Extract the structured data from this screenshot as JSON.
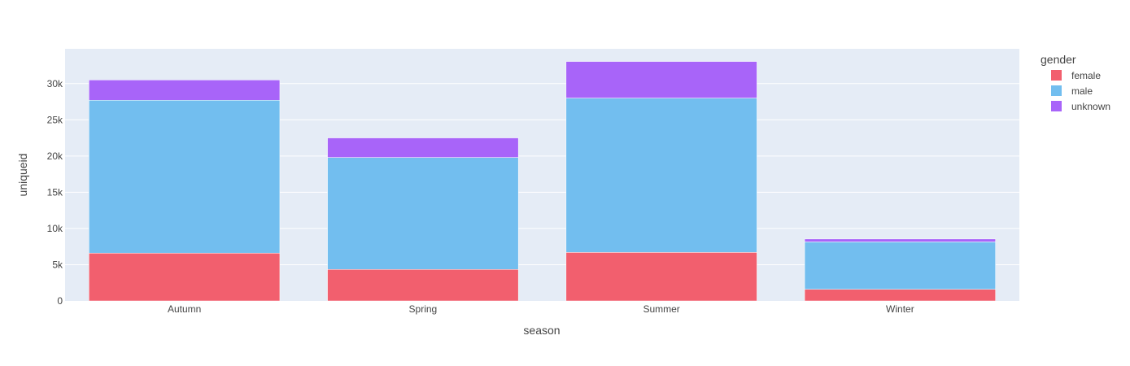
{
  "chart_data": {
    "type": "bar",
    "barmode": "stack",
    "categories": [
      "Autumn",
      "Spring",
      "Summer",
      "Winter"
    ],
    "series": [
      {
        "name": "female",
        "color": "#F25F6E",
        "values": [
          6600,
          4350,
          6700,
          1600
        ]
      },
      {
        "name": "male",
        "color": "#72BEEF",
        "values": [
          21100,
          15450,
          21300,
          6550
        ]
      },
      {
        "name": "unknown",
        "color": "#A864F9",
        "values": [
          2800,
          2700,
          5050,
          400
        ]
      }
    ],
    "xlabel": "season",
    "ylabel": "uniqueid",
    "ylim": [
      0,
      34800
    ],
    "yticks": [
      0,
      5000,
      10000,
      15000,
      20000,
      25000,
      30000
    ],
    "ytick_labels": [
      "0",
      "5k",
      "10k",
      "15k",
      "20k",
      "25k",
      "30k"
    ],
    "grid": true,
    "plot_background": "#E5ECF6",
    "legend": {
      "title": "gender",
      "placement": "right"
    }
  }
}
